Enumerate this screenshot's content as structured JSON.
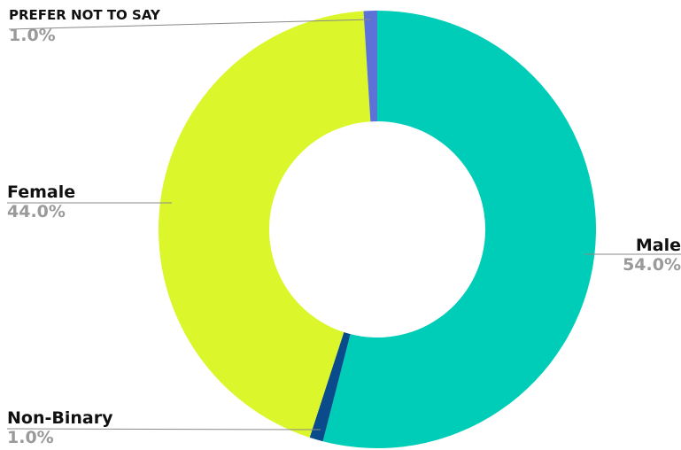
{
  "chart_data": {
    "type": "pie",
    "variant": "donut",
    "start_angle_deg": 0,
    "direction": "clockwise",
    "slices": [
      {
        "label": "Male",
        "value": 54.0,
        "value_label": "54.0%",
        "color": "#00CDB7"
      },
      {
        "label": "Non-Binary",
        "value": 1.0,
        "value_label": "1.0%",
        "color": "#0A4B8C"
      },
      {
        "label": "Female",
        "value": 44.0,
        "value_label": "44.0%",
        "color": "#DBF72C"
      },
      {
        "label": "PREFER NOT TO SAY",
        "value": 1.0,
        "value_label": "1.0%",
        "color": "#5C72D6"
      }
    ]
  }
}
